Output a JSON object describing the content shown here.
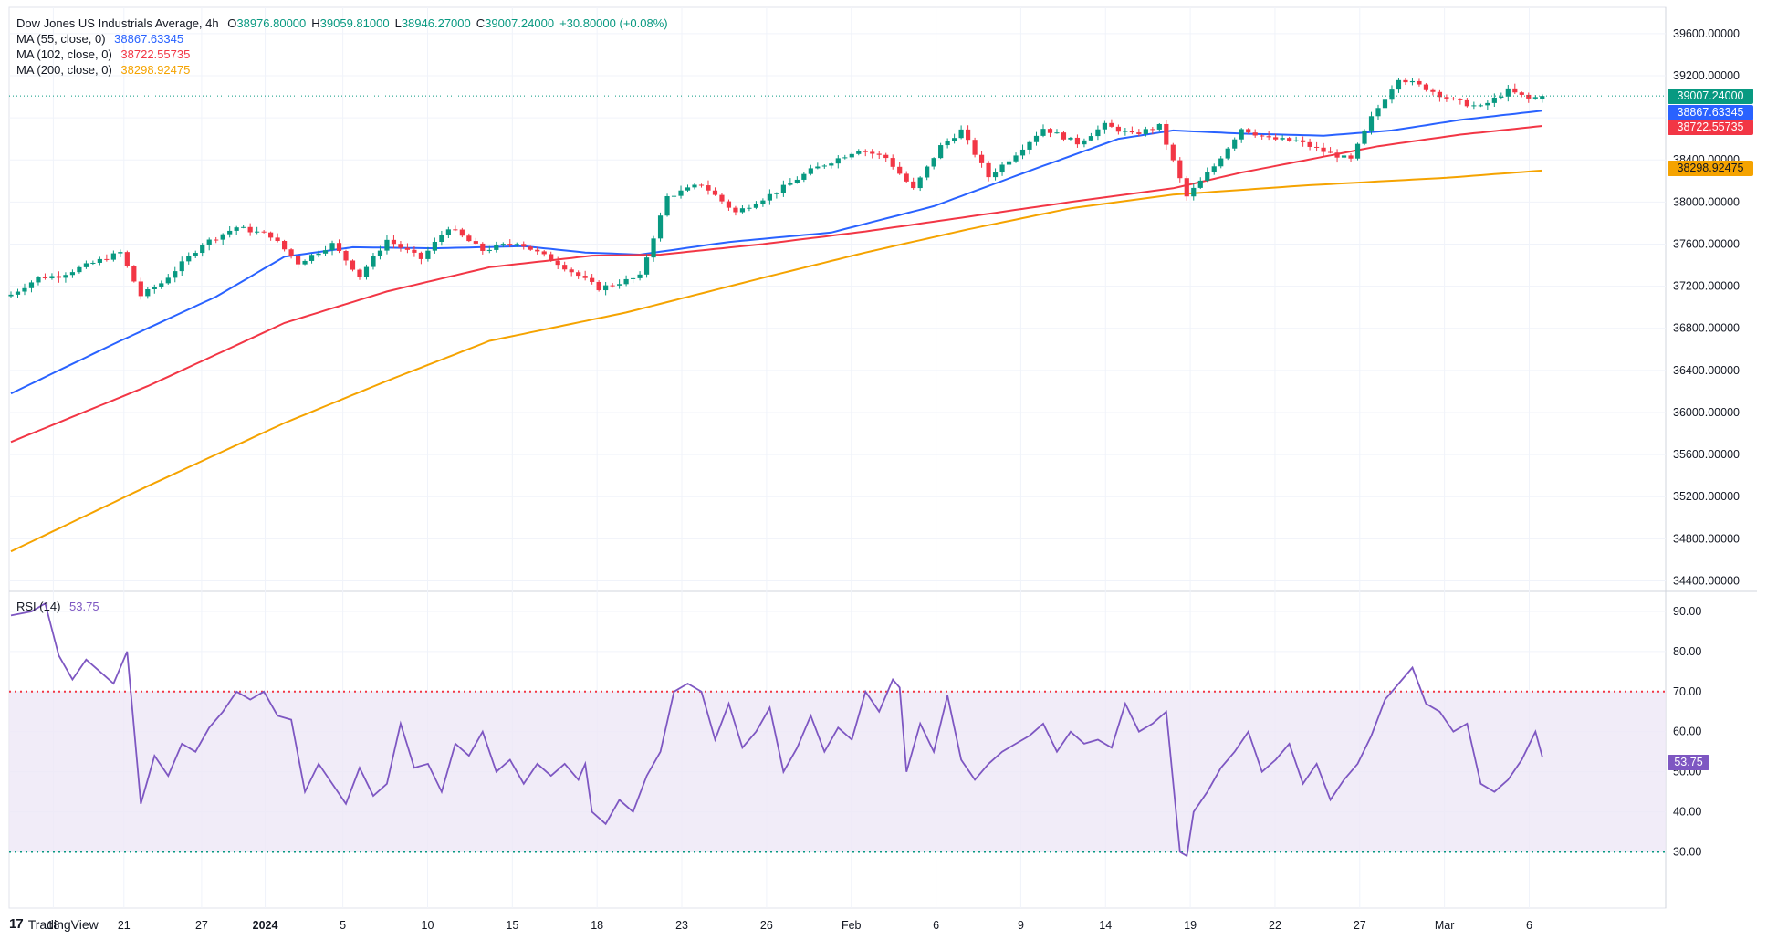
{
  "legend": {
    "symbol": "Dow Jones US Industrials Average, 4h",
    "o_label": "O",
    "o": "38976.80000",
    "h_label": "H",
    "h": "39059.81000",
    "l_label": "L",
    "l": "38946.27000",
    "c_label": "C",
    "c": "39007.24000",
    "change": "+30.80000 (+0.08%)",
    "ma55_label": "MA (55, close, 0)",
    "ma55_value": "38867.63345",
    "ma102_label": "MA (102, close, 0)",
    "ma102_value": "38722.55735",
    "ma200_label": "MA (200, close, 0)",
    "ma200_value": "38298.92475",
    "rsi_label": "RSI (14)",
    "rsi_value": "53.75"
  },
  "price_boxes": {
    "close": "39007.24000",
    "ma55": "38867.63345",
    "ma102": "38722.55735",
    "ma200": "38298.92475",
    "rsi": "53.75"
  },
  "brand": {
    "logo": "17",
    "name": "TradingView"
  },
  "colors": {
    "up": "#089981",
    "down": "#f23645",
    "ma55": "#2962ff",
    "ma102": "#f23645",
    "ma200": "#f5a300",
    "rsi": "#7e57c2",
    "rsi_band": "#ede7f6",
    "ob": "#f23645",
    "os": "#089981"
  },
  "chart_data": [
    {
      "type": "candlestick",
      "title": "Dow Jones US Industrials Average, 4h",
      "y_ticks": [
        "39600.00000",
        "39200.00000",
        "38800.00000",
        "38400.00000",
        "38000.00000",
        "37600.00000",
        "37200.00000",
        "36800.00000",
        "36400.00000",
        "36000.00000",
        "35600.00000",
        "35200.00000",
        "34800.00000",
        "34400.00000"
      ],
      "ylim": [
        34300,
        39850
      ],
      "x_ticks": [
        "18",
        "21",
        "27",
        "2024",
        "5",
        "10",
        "15",
        "18",
        "23",
        "26",
        "Feb",
        "6",
        "9",
        "14",
        "19",
        "22",
        "27",
        "Mar",
        "6"
      ],
      "anchors": [
        {
          "i": 0,
          "c": 37120
        },
        {
          "i": 4,
          "c": 37280
        },
        {
          "i": 7,
          "c": 37300
        },
        {
          "i": 12,
          "c": 37420
        },
        {
          "i": 16,
          "c": 37520
        },
        {
          "i": 19,
          "c": 37110
        },
        {
          "i": 22,
          "c": 37230
        },
        {
          "i": 28,
          "c": 37600
        },
        {
          "i": 33,
          "c": 37760
        },
        {
          "i": 38,
          "c": 37680
        },
        {
          "i": 42,
          "c": 37420
        },
        {
          "i": 47,
          "c": 37600
        },
        {
          "i": 51,
          "c": 37300
        },
        {
          "i": 55,
          "c": 37640
        },
        {
          "i": 60,
          "c": 37460
        },
        {
          "i": 64,
          "c": 37760
        },
        {
          "i": 69,
          "c": 37540
        },
        {
          "i": 74,
          "c": 37620
        },
        {
          "i": 80,
          "c": 37420
        },
        {
          "i": 86,
          "c": 37180
        },
        {
          "i": 92,
          "c": 37290
        },
        {
          "i": 96,
          "c": 38050
        },
        {
          "i": 101,
          "c": 38170
        },
        {
          "i": 106,
          "c": 37900
        },
        {
          "i": 112,
          "c": 38100
        },
        {
          "i": 117,
          "c": 38300
        },
        {
          "i": 124,
          "c": 38500
        },
        {
          "i": 128,
          "c": 38420
        },
        {
          "i": 132,
          "c": 38120
        },
        {
          "i": 136,
          "c": 38530
        },
        {
          "i": 139,
          "c": 38680
        },
        {
          "i": 143,
          "c": 38240
        },
        {
          "i": 147,
          "c": 38460
        },
        {
          "i": 151,
          "c": 38700
        },
        {
          "i": 156,
          "c": 38560
        },
        {
          "i": 160,
          "c": 38730
        },
        {
          "i": 164,
          "c": 38640
        },
        {
          "i": 168,
          "c": 38720
        },
        {
          "i": 172,
          "c": 38050
        },
        {
          "i": 176,
          "c": 38340
        },
        {
          "i": 180,
          "c": 38700
        },
        {
          "i": 184,
          "c": 38600
        },
        {
          "i": 188,
          "c": 38580
        },
        {
          "i": 192,
          "c": 38480
        },
        {
          "i": 196,
          "c": 38400
        },
        {
          "i": 199,
          "c": 38800
        },
        {
          "i": 203,
          "c": 39180
        },
        {
          "i": 207,
          "c": 39080
        },
        {
          "i": 211,
          "c": 38960
        },
        {
          "i": 215,
          "c": 38900
        },
        {
          "i": 219,
          "c": 39060
        },
        {
          "i": 222,
          "c": 38980
        },
        {
          "i": 224,
          "c": 39007.24
        }
      ],
      "series": [
        {
          "name": "MA (55, close, 0)",
          "last": 38867.63345,
          "points": [
            [
              0,
              36180
            ],
            [
              15,
              36650
            ],
            [
              30,
              37100
            ],
            [
              40,
              37480
            ],
            [
              50,
              37570
            ],
            [
              62,
              37560
            ],
            [
              75,
              37580
            ],
            [
              84,
              37520
            ],
            [
              92,
              37500
            ],
            [
              105,
              37620
            ],
            [
              120,
              37710
            ],
            [
              135,
              37960
            ],
            [
              150,
              38320
            ],
            [
              162,
              38600
            ],
            [
              170,
              38680
            ],
            [
              180,
              38650
            ],
            [
              192,
              38630
            ],
            [
              202,
              38680
            ],
            [
              212,
              38780
            ],
            [
              224,
              38867.63
            ]
          ]
        },
        {
          "name": "MA (102, close, 0)",
          "last": 38722.55735,
          "points": [
            [
              0,
              35720
            ],
            [
              20,
              36250
            ],
            [
              40,
              36850
            ],
            [
              55,
              37150
            ],
            [
              70,
              37380
            ],
            [
              85,
              37490
            ],
            [
              95,
              37500
            ],
            [
              110,
              37600
            ],
            [
              125,
              37720
            ],
            [
              140,
              37860
            ],
            [
              155,
              38000
            ],
            [
              170,
              38130
            ],
            [
              180,
              38280
            ],
            [
              192,
              38430
            ],
            [
              200,
              38530
            ],
            [
              212,
              38640
            ],
            [
              224,
              38722.56
            ]
          ]
        },
        {
          "name": "MA (200, close, 0)",
          "last": 38298.92475,
          "points": [
            [
              0,
              34680
            ],
            [
              20,
              35300
            ],
            [
              40,
              35900
            ],
            [
              55,
              36300
            ],
            [
              70,
              36680
            ],
            [
              90,
              36950
            ],
            [
              110,
              37280
            ],
            [
              125,
              37520
            ],
            [
              140,
              37740
            ],
            [
              155,
              37940
            ],
            [
              170,
              38070
            ],
            [
              190,
              38160
            ],
            [
              210,
              38230
            ],
            [
              224,
              38298.92
            ]
          ]
        }
      ]
    },
    {
      "type": "line",
      "title": "RSI (14)",
      "y_ticks": [
        "90.00",
        "80.00",
        "70.00",
        "60.00",
        "50.00",
        "40.00",
        "30.00"
      ],
      "ylim": [
        16,
        95
      ],
      "overbought": 70,
      "oversold": 30,
      "values": [
        [
          0,
          89
        ],
        [
          3,
          90
        ],
        [
          5,
          92
        ],
        [
          7,
          79
        ],
        [
          9,
          73
        ],
        [
          11,
          78
        ],
        [
          13,
          75
        ],
        [
          15,
          72
        ],
        [
          17,
          80
        ],
        [
          19,
          42
        ],
        [
          21,
          54
        ],
        [
          23,
          49
        ],
        [
          25,
          57
        ],
        [
          27,
          55
        ],
        [
          29,
          61
        ],
        [
          31,
          65
        ],
        [
          33,
          70
        ],
        [
          35,
          68
        ],
        [
          37,
          70
        ],
        [
          39,
          64
        ],
        [
          41,
          63
        ],
        [
          43,
          45
        ],
        [
          45,
          52
        ],
        [
          47,
          47
        ],
        [
          49,
          42
        ],
        [
          51,
          51
        ],
        [
          53,
          44
        ],
        [
          55,
          47
        ],
        [
          57,
          62
        ],
        [
          59,
          51
        ],
        [
          61,
          52
        ],
        [
          63,
          45
        ],
        [
          65,
          57
        ],
        [
          67,
          54
        ],
        [
          69,
          60
        ],
        [
          71,
          50
        ],
        [
          73,
          53
        ],
        [
          75,
          47
        ],
        [
          77,
          52
        ],
        [
          79,
          49
        ],
        [
          81,
          52
        ],
        [
          83,
          48
        ],
        [
          84,
          52
        ],
        [
          85,
          40
        ],
        [
          87,
          37
        ],
        [
          89,
          43
        ],
        [
          91,
          40
        ],
        [
          93,
          49
        ],
        [
          95,
          55
        ],
        [
          97,
          70
        ],
        [
          99,
          72
        ],
        [
          101,
          70
        ],
        [
          103,
          58
        ],
        [
          105,
          67
        ],
        [
          107,
          56
        ],
        [
          109,
          60
        ],
        [
          111,
          66
        ],
        [
          113,
          50
        ],
        [
          115,
          56
        ],
        [
          117,
          64
        ],
        [
          119,
          55
        ],
        [
          121,
          61
        ],
        [
          123,
          58
        ],
        [
          125,
          70
        ],
        [
          127,
          65
        ],
        [
          129,
          73
        ],
        [
          130,
          71
        ],
        [
          131,
          50
        ],
        [
          133,
          62
        ],
        [
          135,
          55
        ],
        [
          137,
          69
        ],
        [
          139,
          53
        ],
        [
          141,
          48
        ],
        [
          143,
          52
        ],
        [
          145,
          55
        ],
        [
          147,
          57
        ],
        [
          149,
          59
        ],
        [
          151,
          62
        ],
        [
          153,
          55
        ],
        [
          155,
          60
        ],
        [
          157,
          57
        ],
        [
          159,
          58
        ],
        [
          161,
          56
        ],
        [
          163,
          67
        ],
        [
          165,
          60
        ],
        [
          167,
          62
        ],
        [
          169,
          65
        ],
        [
          171,
          30
        ],
        [
          172,
          29
        ],
        [
          173,
          40
        ],
        [
          175,
          45
        ],
        [
          177,
          51
        ],
        [
          179,
          55
        ],
        [
          181,
          60
        ],
        [
          183,
          50
        ],
        [
          185,
          53
        ],
        [
          187,
          57
        ],
        [
          189,
          47
        ],
        [
          191,
          52
        ],
        [
          193,
          43
        ],
        [
          195,
          48
        ],
        [
          197,
          52
        ],
        [
          199,
          59
        ],
        [
          201,
          68
        ],
        [
          203,
          72
        ],
        [
          205,
          76
        ],
        [
          207,
          67
        ],
        [
          209,
          65
        ],
        [
          211,
          60
        ],
        [
          213,
          62
        ],
        [
          215,
          47
        ],
        [
          217,
          45
        ],
        [
          219,
          48
        ],
        [
          221,
          53
        ],
        [
          223,
          60
        ],
        [
          224,
          53.75
        ]
      ]
    }
  ]
}
